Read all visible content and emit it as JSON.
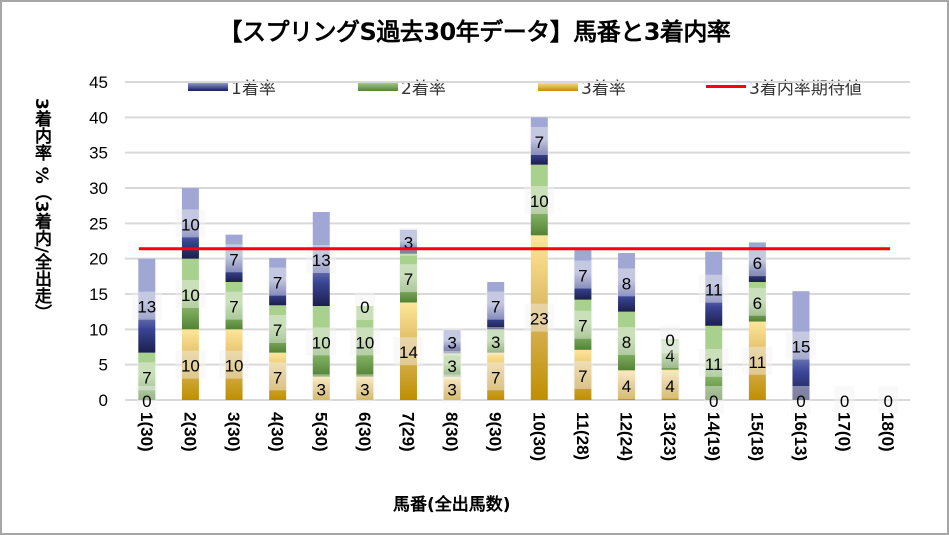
{
  "chart_data": {
    "type": "bar",
    "stacked": true,
    "title": "【スプリングS過去30年データ】馬番と3着内率",
    "xlabel": "馬番(全出馬数)",
    "ylabel": "3着内率 %（3着内/全出走）",
    "ylim": [
      0,
      45
    ],
    "yticks": [
      0,
      5,
      10,
      15,
      20,
      25,
      30,
      35,
      40,
      45
    ],
    "grid": true,
    "legend_position": "top",
    "categories": [
      "1(30)",
      "2(30)",
      "3(30)",
      "4(30)",
      "5(30)",
      "6(30)",
      "7(29)",
      "8(30)",
      "9(30)",
      "10(30)",
      "11(28)",
      "12(24)",
      "13(23)",
      "14(19)",
      "15(18)",
      "16(13)",
      "17(0)",
      "18(0)"
    ],
    "series": [
      {
        "name": "3着率",
        "color": "#bf8f00",
        "values": [
          0,
          10,
          10,
          6.7,
          3.3,
          3.3,
          13.8,
          3.3,
          6.7,
          23.3,
          7.1,
          4.2,
          4.3,
          0,
          11.1,
          0,
          0,
          0
        ],
        "labels": [
          "0",
          "10",
          "10",
          "7",
          "3",
          "3",
          "14",
          "3",
          "7",
          "23",
          "7",
          "4",
          "4",
          "0",
          "11",
          "0",
          "0",
          "0"
        ]
      },
      {
        "name": "2着率",
        "color": "#548235",
        "values": [
          6.7,
          10,
          6.7,
          6.7,
          10,
          10,
          6.9,
          3.3,
          3.3,
          10,
          7.1,
          8.3,
          4.3,
          10.5,
          5.6,
          0,
          0,
          0
        ],
        "labels": [
          "7",
          "10",
          "7",
          "7",
          "10",
          "10",
          "7",
          "3",
          "3",
          "10",
          "7",
          "8",
          "4",
          "11",
          "6",
          "",
          "",
          ""
        ]
      },
      {
        "name": "1着率",
        "color": "#2f3a8f",
        "values": [
          13.3,
          10,
          6.7,
          6.7,
          13.3,
          0,
          3.4,
          3.3,
          6.7,
          6.7,
          7.1,
          8.3,
          0,
          10.5,
          5.6,
          15.4,
          0,
          0
        ],
        "labels": [
          "13",
          "10",
          "7",
          "7",
          "13",
          "0",
          "3",
          "3",
          "7",
          "7",
          "7",
          "8",
          "0",
          "11",
          "6",
          "15",
          "",
          ""
        ]
      }
    ],
    "reference_line": {
      "name": "3着内率期待値",
      "value": 21.4,
      "color": "#ff0000"
    }
  }
}
